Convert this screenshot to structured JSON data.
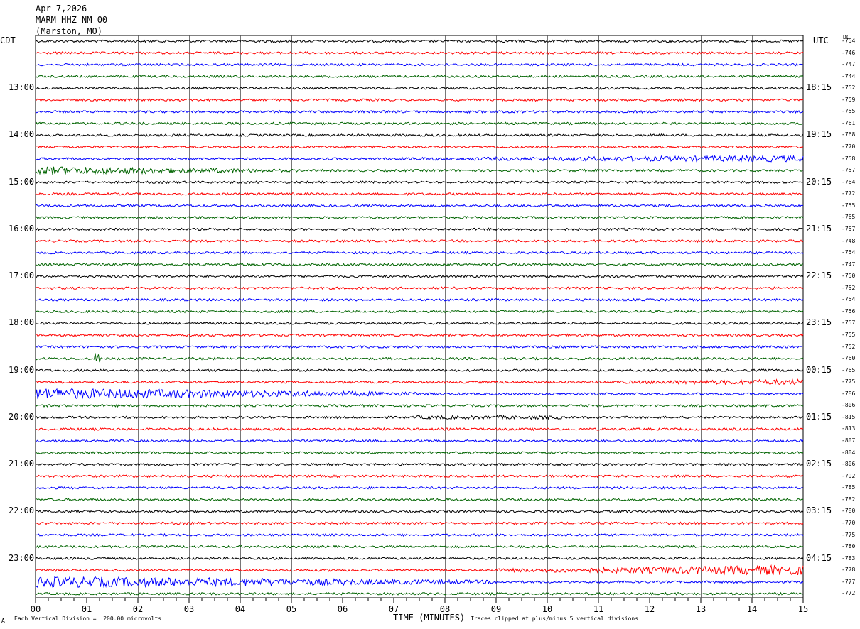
{
  "header": {
    "date": "Apr 7,2026",
    "station": "MARM HHZ NM 00",
    "location": "(Marston, MO)"
  },
  "left_zone": "CDT",
  "right_zone": "UTC",
  "dc_header": "DC",
  "footer": {
    "scale_note": "Each Vertical Division =  200.00 microvolts",
    "xlabel": "TIME (MINUTES)",
    "clip_note": "Traces clipped at plus/minus 5 vertical divisions",
    "corner_mark": "A"
  },
  "colors": {
    "black": "#000000",
    "red": "#ff0000",
    "blue": "#0000ff",
    "green": "#006400",
    "grid": "#000000"
  },
  "chart_data": {
    "type": "line",
    "title": "MARM HHZ NM 00",
    "xlabel": "TIME (MINUTES)",
    "x_ticks": [
      "00",
      "01",
      "02",
      "03",
      "04",
      "05",
      "06",
      "07",
      "08",
      "09",
      "10",
      "11",
      "12",
      "13",
      "14",
      "15"
    ],
    "xlim": [
      0,
      15
    ],
    "rows_per_hour": 4,
    "trace_colors": [
      "black",
      "red",
      "blue",
      "green"
    ],
    "left_time_labels": [
      "13:00",
      "14:00",
      "15:00",
      "16:00",
      "17:00",
      "18:00",
      "19:00",
      "20:00",
      "21:00",
      "22:00",
      "23:00"
    ],
    "right_time_labels": [
      "18:15",
      "19:15",
      "20:15",
      "21:15",
      "22:15",
      "23:15",
      "00:15",
      "01:15",
      "02:15",
      "03:15",
      "04:15"
    ],
    "dc_offsets": [
      -754,
      -746,
      -747,
      -744,
      -752,
      -759,
      -755,
      -761,
      -768,
      -770,
      -758,
      -757,
      -764,
      -772,
      -755,
      -765,
      -757,
      -748,
      -754,
      -747,
      -750,
      -752,
      -754,
      -756,
      -757,
      -755,
      -752,
      -760,
      -765,
      -775,
      -786,
      -806,
      -815,
      -813,
      -807,
      -804,
      -806,
      -792,
      -785,
      -782,
      -780,
      -770,
      -775,
      -780,
      -783,
      -778,
      -777,
      -772
    ],
    "events": [
      {
        "row": 10,
        "start": 5.5,
        "end": 15,
        "amp": 4.5,
        "ramp": "up"
      },
      {
        "row": 11,
        "start": 0,
        "end": 5.2,
        "amp": 6,
        "ramp": "down"
      },
      {
        "row": 27,
        "start": 1.15,
        "end": 1.25,
        "amp": 8,
        "ramp": "none"
      },
      {
        "row": 29,
        "start": 10,
        "end": 15,
        "amp": 4,
        "ramp": "up"
      },
      {
        "row": 30,
        "start": 0,
        "end": 7.5,
        "amp": 8,
        "ramp": "down"
      },
      {
        "row": 32,
        "start": 7.4,
        "end": 10.3,
        "amp": 2.5,
        "ramp": "none"
      },
      {
        "row": 45,
        "start": 9,
        "end": 15,
        "amp": 7,
        "ramp": "up"
      },
      {
        "row": 46,
        "start": 0,
        "end": 9,
        "amp": 8,
        "ramp": "down"
      }
    ]
  }
}
